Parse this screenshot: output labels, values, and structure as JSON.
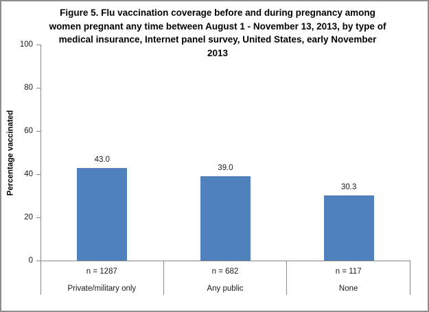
{
  "chart_data": {
    "type": "bar",
    "title": "Figure 5. Flu vaccination coverage before and during pregnancy  among women pregnant any time between August 1 - November 13, 2013, by type of medical insurance, Internet panel survey, United States, early November 2013",
    "ylabel": "Percentage vaccinated",
    "xlabel": "",
    "ylim": [
      0,
      100
    ],
    "yticks": [
      "0",
      "20",
      "40",
      "60",
      "80",
      "100"
    ],
    "categories": [
      "Private/military only",
      "Any public",
      "None"
    ],
    "sample_sizes": [
      "n = 1287",
      "n = 682",
      "n = 117"
    ],
    "values": [
      43.0,
      39.0,
      30.3
    ],
    "value_labels": [
      "43.0",
      "39.0",
      "30.3"
    ],
    "bar_color": "#4F81BD",
    "axis_color": "#868686",
    "grid": false,
    "legend_position": "none"
  }
}
